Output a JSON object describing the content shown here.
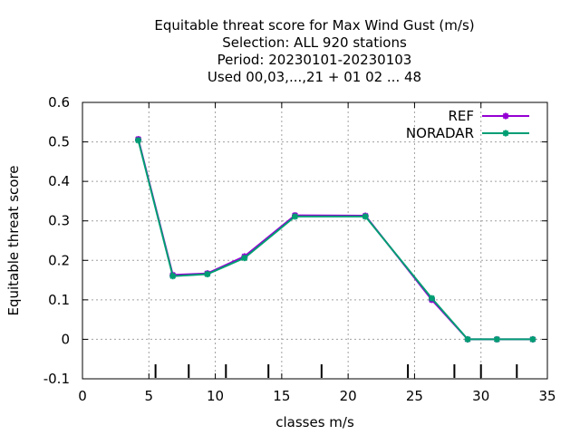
{
  "chart_data": {
    "type": "line",
    "title_lines": [
      "Equitable threat score  for Max Wind Gust (m/s)",
      "Selection: ALL    920 stations",
      "Period: 20230101-20230103",
      "Used  00,03,...,21  + 01 02 ... 48"
    ],
    "xlabel": "classes m/s",
    "ylabel": "Equitable threat score",
    "xlim": [
      0,
      35
    ],
    "ylim": [
      -0.1,
      0.6
    ],
    "xticks": [
      0,
      5,
      10,
      15,
      20,
      25,
      30,
      35
    ],
    "yticks": [
      -0.1,
      0,
      0.1,
      0.2,
      0.3,
      0.4,
      0.5,
      0.6
    ],
    "ytick_labels": [
      "-0.1",
      "0",
      "0.1",
      "0.2",
      "0.3",
      "0.4",
      "0.5",
      "0.6"
    ],
    "grid": true,
    "legend_position": "top-right",
    "class_marks": [
      5.5,
      8,
      10.8,
      14,
      18,
      24.5,
      28,
      30,
      32.7
    ],
    "series": [
      {
        "name": "REF",
        "color": "#9400d3",
        "x": [
          4.2,
          6.8,
          9.4,
          12.2,
          16,
          21.3,
          26.3,
          29,
          31.2,
          33.9
        ],
        "y": [
          0.507,
          0.163,
          0.167,
          0.21,
          0.314,
          0.313,
          0.1,
          0,
          0,
          0
        ]
      },
      {
        "name": "NORADAR",
        "color": "#009e73",
        "x": [
          4.2,
          6.8,
          9.4,
          12.2,
          16,
          21.3,
          26.3,
          29,
          31.2,
          33.9
        ],
        "y": [
          0.504,
          0.16,
          0.165,
          0.206,
          0.311,
          0.311,
          0.104,
          0,
          0,
          0
        ]
      }
    ]
  }
}
